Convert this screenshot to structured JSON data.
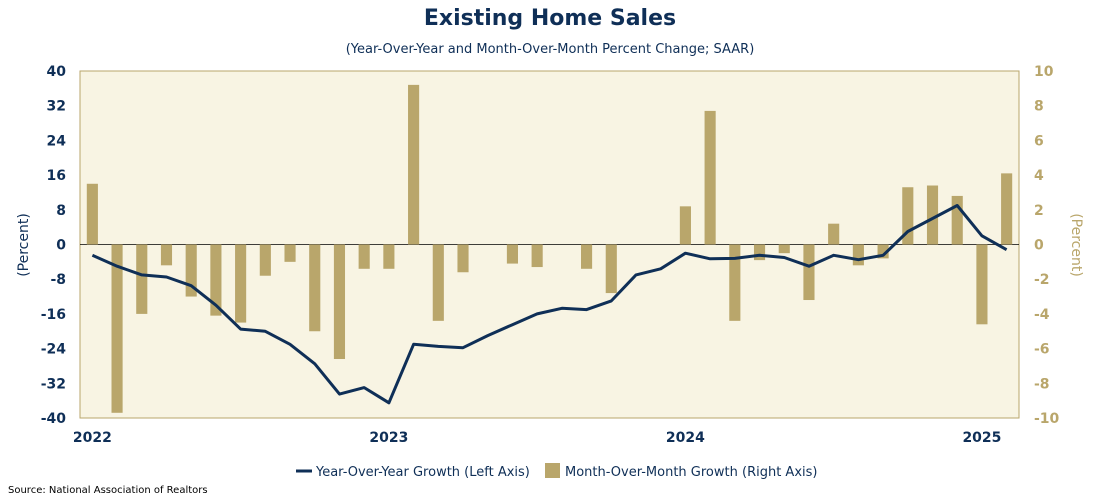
{
  "title": "Existing Home Sales",
  "subtitle": "(Year-Over-Year and Month-Over-Month Percent Change; SAAR)",
  "source": "Source: National Association of Realtors",
  "colors": {
    "plot_background": "#f8f4e3",
    "line": "#0f2f57",
    "bars": "#b9a66b",
    "left_axis_text": "#0f2f57",
    "right_axis_text": "#b9a66b"
  },
  "chart_data": {
    "type": "bar+line",
    "title": "Existing Home Sales",
    "subtitle": "(Year-Over-Year and Month-Over-Month Percent Change; SAAR)",
    "ylabel_left": "(Percent)",
    "ylabel_right": "(Percent)",
    "ylim_left": [
      -40,
      40
    ],
    "ylim_right": [
      -10,
      10
    ],
    "yticks_left": [
      40,
      32,
      24,
      16,
      8,
      0,
      -8,
      -16,
      -24,
      -32,
      -40
    ],
    "yticks_right": [
      10,
      8,
      6,
      4,
      2,
      0,
      -2,
      -4,
      -6,
      -8,
      -10
    ],
    "x_tick_labels": [
      "2022",
      "2023",
      "2024",
      "2025"
    ],
    "grid": false,
    "legend_position": "bottom",
    "x": [
      "2022-01",
      "2022-02",
      "2022-03",
      "2022-04",
      "2022-05",
      "2022-06",
      "2022-07",
      "2022-08",
      "2022-09",
      "2022-10",
      "2022-11",
      "2022-12",
      "2023-01",
      "2023-02",
      "2023-03",
      "2023-04",
      "2023-05",
      "2023-06",
      "2023-07",
      "2023-08",
      "2023-09",
      "2023-10",
      "2023-11",
      "2023-12",
      "2024-01",
      "2024-02",
      "2024-03",
      "2024-04",
      "2024-05",
      "2024-06",
      "2024-07",
      "2024-08",
      "2024-09",
      "2024-10",
      "2024-11",
      "2024-12",
      "2025-01",
      "2025-02"
    ],
    "series": [
      {
        "name": "Year-Over-Year Growth (Left Axis)",
        "type": "line",
        "axis": "left",
        "values": [
          -2.5,
          -5.0,
          -7.0,
          -7.5,
          -9.5,
          -14.0,
          -19.5,
          -20.0,
          -23.0,
          -27.5,
          -34.5,
          -33.0,
          -36.5,
          -23.0,
          -23.5,
          -23.8,
          -21.0,
          -18.5,
          -16.0,
          -14.7,
          -15.0,
          -13.0,
          -7.0,
          -5.6,
          -2.0,
          -3.3,
          -3.2,
          -2.5,
          -3.0,
          -5.0,
          -2.5,
          -3.5,
          -2.5,
          3.0,
          6.0,
          9.0,
          2.0,
          -1.2
        ]
      },
      {
        "name": "Month-Over-Month Growth (Right Axis)",
        "type": "bar",
        "axis": "right",
        "values": [
          3.5,
          -9.7,
          -4.0,
          -1.2,
          -3.0,
          -4.1,
          -4.5,
          -1.8,
          -1.0,
          -5.0,
          -6.6,
          -1.4,
          -1.4,
          9.2,
          -4.4,
          -1.6,
          0.0,
          -1.1,
          -1.3,
          0.0,
          -1.4,
          -2.8,
          0.0,
          0.0,
          2.2,
          7.7,
          -4.4,
          -0.9,
          -0.5,
          -3.2,
          1.2,
          -1.2,
          -0.8,
          3.3,
          3.4,
          2.8,
          -4.6,
          4.1
        ]
      }
    ]
  }
}
